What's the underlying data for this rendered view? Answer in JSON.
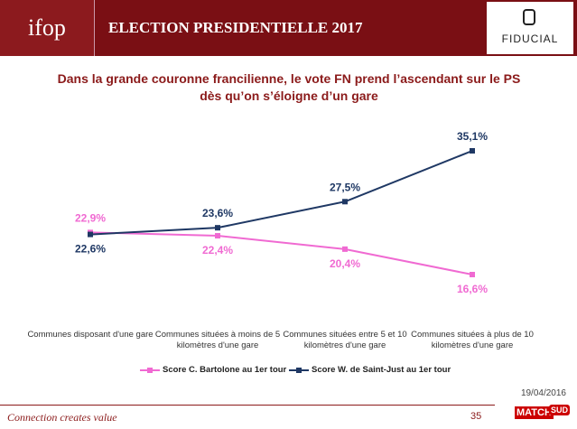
{
  "header": {
    "logo": "ifop",
    "title": "ELECTION PRESIDENTIELLE 2017",
    "partner": "FIDUCIAL"
  },
  "chart_data": {
    "type": "line",
    "title": "Dans la grande couronne francilienne, le vote FN prend l’ascendant sur le PS dès qu’on s’éloigne d’un gare",
    "categories": [
      "Communes disposant d'une gare",
      "Communes situées à moins de 5 kilomètres d'une gare",
      "Communes situées entre 5 et 10 kilomètres d'une gare",
      "Communes situées à plus de 10 kilomètres d'une gare"
    ],
    "series": [
      {
        "name": "Score C. Bartolone au 1er tour",
        "color": "#f06ad2",
        "values": [
          22.9,
          22.4,
          20.4,
          16.6
        ],
        "value_labels": [
          "22,9%",
          "22,4%",
          "20,4%",
          "16,6%"
        ]
      },
      {
        "name": "Score W. de Saint-Just au 1er tour",
        "color": "#1f3864",
        "values": [
          22.6,
          23.6,
          27.5,
          35.1
        ],
        "value_labels": [
          "22,6%",
          "23,6%",
          "27,5%",
          "35,1%"
        ]
      }
    ]
  },
  "footer": {
    "date": "19/04/2016",
    "tagline": "Connection creates value",
    "page": "35",
    "logo1": "MATCH",
    "logo2": "SUD"
  }
}
